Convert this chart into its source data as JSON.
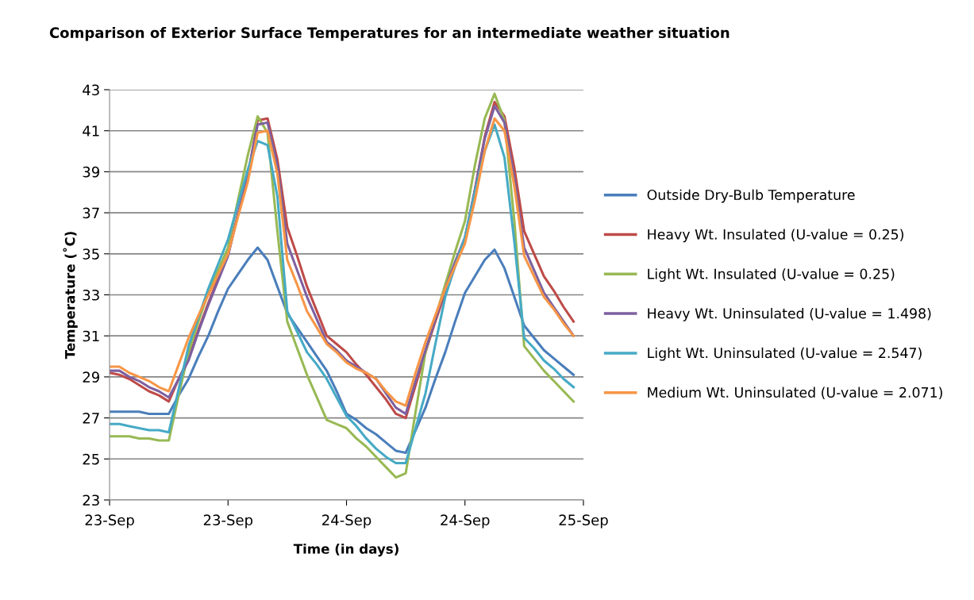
{
  "chart_data": {
    "type": "line",
    "title": "Comparison of Exterior Surface Temperatures for an intermediate weather situation",
    "xlabel": "Time (in days)",
    "ylabel": "Temperature (˚C)",
    "categories": [
      "23-Sep",
      null,
      null,
      null,
      null,
      null,
      null,
      null,
      null,
      null,
      null,
      null,
      "23-Sep",
      null,
      null,
      null,
      null,
      null,
      null,
      null,
      null,
      null,
      null,
      null,
      "24-Sep",
      null,
      null,
      null,
      null,
      null,
      null,
      null,
      null,
      null,
      null,
      null,
      "24-Sep",
      null,
      null,
      null,
      null,
      null,
      null,
      null,
      null,
      null,
      null,
      null,
      "25-Sep"
    ],
    "ylim": [
      23,
      43
    ],
    "yticks": [
      23,
      25,
      27,
      29,
      31,
      33,
      35,
      37,
      39,
      41,
      43
    ],
    "grid": "y",
    "legend": "right",
    "marker": "none",
    "line_style": "solid",
    "series": [
      {
        "name": "Outside Dry-Bulb Temperature",
        "color": "#4a7ebb",
        "values": [
          27.3,
          27.3,
          27.3,
          27.3,
          27.2,
          27.2,
          27.2,
          28.1,
          28.9,
          30.0,
          31.0,
          32.2,
          33.3,
          34.0,
          34.7,
          35.3,
          34.7,
          33.4,
          32.1,
          31.4,
          30.7,
          30.0,
          29.3,
          28.3,
          27.2,
          26.9,
          26.5,
          26.2,
          25.8,
          25.4,
          25.3,
          26.4,
          27.5,
          28.9,
          30.2,
          31.7,
          33.1,
          33.9,
          34.7,
          35.2,
          34.3,
          32.9,
          31.5,
          30.9,
          30.3,
          29.9,
          29.5,
          29.1,
          null
        ]
      },
      {
        "name": "Heavy Wt. Insulated (U-value = 0.25)",
        "color": "#be4b48",
        "values": [
          29.2,
          29.1,
          28.9,
          28.6,
          28.3,
          28.1,
          27.8,
          28.9,
          29.9,
          31.3,
          32.6,
          33.8,
          35.0,
          36.9,
          38.7,
          41.5,
          41.6,
          39.6,
          36.3,
          34.9,
          33.4,
          32.2,
          31.0,
          30.6,
          30.2,
          29.6,
          29.1,
          28.5,
          27.9,
          27.2,
          27.0,
          28.6,
          30.2,
          31.7,
          33.1,
          34.4,
          35.7,
          38.1,
          40.7,
          42.4,
          41.7,
          39.2,
          36.1,
          35.0,
          33.9,
          33.2,
          32.4,
          31.7,
          null
        ]
      },
      {
        "name": "Light Wt. Insulated (U-value = 0.25)",
        "color": "#98b954",
        "values": [
          26.1,
          26.1,
          26.1,
          26.0,
          26.0,
          25.9,
          25.9,
          28.1,
          30.2,
          31.7,
          33.1,
          34.2,
          35.3,
          37.6,
          39.8,
          41.7,
          40.9,
          36.1,
          31.7,
          30.4,
          29.1,
          28.0,
          26.9,
          26.7,
          26.5,
          26.0,
          25.6,
          25.1,
          24.6,
          24.1,
          24.3,
          27.3,
          30.2,
          31.9,
          33.5,
          35.1,
          36.6,
          39.3,
          41.6,
          42.8,
          41.5,
          36.6,
          30.5,
          29.9,
          29.3,
          28.8,
          28.3,
          27.8,
          null
        ]
      },
      {
        "name": "Heavy Wt. Uninsulated (U-value = 1.498)",
        "color": "#7d60a0",
        "values": [
          29.3,
          29.3,
          29.0,
          28.8,
          28.5,
          28.3,
          28.0,
          28.9,
          29.8,
          31.2,
          32.5,
          33.7,
          34.9,
          36.9,
          38.9,
          41.3,
          41.4,
          39.3,
          35.5,
          34.2,
          32.9,
          31.8,
          30.7,
          30.3,
          29.8,
          29.5,
          29.2,
          28.9,
          28.2,
          27.5,
          27.2,
          28.8,
          30.3,
          31.8,
          33.3,
          34.6,
          35.8,
          38.1,
          40.6,
          42.2,
          41.4,
          38.7,
          35.3,
          34.2,
          33.1,
          32.4,
          31.7,
          31.0,
          null
        ]
      },
      {
        "name": "Light Wt. Uninsulated (U-value = 2.547)",
        "color": "#46aac5",
        "values": [
          26.7,
          26.7,
          26.6,
          26.5,
          26.4,
          26.4,
          26.3,
          28.4,
          30.5,
          31.9,
          33.3,
          34.5,
          35.7,
          37.4,
          39.1,
          40.5,
          40.3,
          37.8,
          32.2,
          31.2,
          30.2,
          29.6,
          28.9,
          28.0,
          27.1,
          26.6,
          26.0,
          25.5,
          25.1,
          24.8,
          24.8,
          26.5,
          28.2,
          30.6,
          32.9,
          34.4,
          35.8,
          38.0,
          40.0,
          41.3,
          39.7,
          35.6,
          30.9,
          30.4,
          29.8,
          29.4,
          28.9,
          28.5,
          null
        ]
      },
      {
        "name": "Medium Wt. Uninsulated (U-value = 2.071)",
        "color": "#f79646",
        "values": [
          29.5,
          29.5,
          29.2,
          29.0,
          28.8,
          28.5,
          28.3,
          29.6,
          30.9,
          32.0,
          33.0,
          34.0,
          35.0,
          36.8,
          38.5,
          40.9,
          41.0,
          38.9,
          34.7,
          33.5,
          32.2,
          31.4,
          30.6,
          30.2,
          29.7,
          29.4,
          29.2,
          28.9,
          28.3,
          27.8,
          27.6,
          29.2,
          30.7,
          32.0,
          33.3,
          34.4,
          35.5,
          37.6,
          40.0,
          41.6,
          41.0,
          38.3,
          34.9,
          33.9,
          32.9,
          32.3,
          31.6,
          31.0,
          null
        ]
      }
    ]
  }
}
